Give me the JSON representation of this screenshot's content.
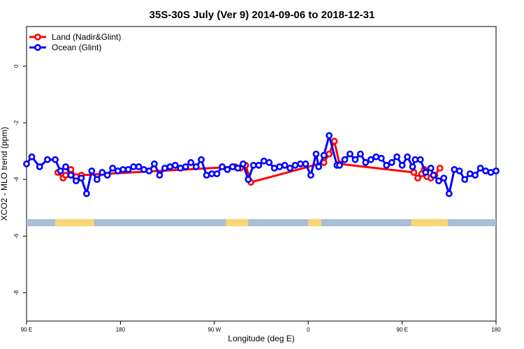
{
  "chart_data": {
    "type": "line",
    "title": "35S-30S July (Ver 9)   2014-09-06 to 2018-12-31",
    "xlabel": "Longitude (deg E)",
    "ylabel": "XCO2 - MLO trend (ppm)",
    "xlim": [
      90,
      450
    ],
    "ylim": [
      -9.0,
      1.4
    ],
    "x_ticks": [
      90,
      162,
      234,
      306,
      378,
      450
    ],
    "x_tick_labels": [
      "90 E",
      "180",
      "90 W",
      "0",
      "90 E",
      "180"
    ],
    "y_ticks": [
      0,
      -2,
      -4,
      -6,
      -8
    ],
    "y_tick_labels": [
      "0",
      "-2",
      "-4",
      "-6",
      "-8"
    ],
    "legend_position": "top-left",
    "colors": {
      "land": "#ff0000",
      "ocean": "#0000ff",
      "sea_strip": "#a9bed7",
      "land_strip": "#f9d774"
    },
    "land_strip": {
      "y_range": [
        -5.65,
        -5.4
      ],
      "land_segments": [
        [
          112,
          142
        ],
        [
          243,
          260
        ],
        [
          306,
          316
        ],
        [
          385,
          413
        ]
      ]
    },
    "series": [
      {
        "name": "Land (Nadir&Glint)",
        "color": "#ff0000",
        "x": [
          114,
          118,
          120,
          124,
          128,
          132,
          250,
          254,
          258,
          262,
          318,
          322,
          326,
          330,
          387,
          390,
          393,
          395,
          397,
          400,
          403,
          407
        ],
        "values": [
          -3.75,
          -3.95,
          -3.85,
          -3.65,
          -3.9,
          -3.85,
          -3.55,
          -3.6,
          -3.5,
          -4.1,
          -3.4,
          -3.1,
          -2.65,
          -3.45,
          -3.75,
          -3.95,
          -3.8,
          -3.65,
          -3.9,
          -3.95,
          -3.85,
          -3.6
        ]
      },
      {
        "name": "Ocean (Glint)",
        "color": "#0000ff",
        "x": [
          90,
          94,
          100,
          106,
          112,
          116,
          120,
          124,
          128,
          132,
          136,
          140,
          144,
          148,
          152,
          156,
          160,
          164,
          168,
          172,
          176,
          180,
          184,
          188,
          192,
          196,
          200,
          204,
          208,
          212,
          216,
          220,
          224,
          228,
          232,
          236,
          240,
          244,
          248,
          252,
          256,
          260,
          264,
          268,
          272,
          276,
          280,
          284,
          288,
          292,
          296,
          300,
          304,
          308,
          312,
          314,
          318,
          322,
          328,
          330,
          334,
          338,
          342,
          346,
          350,
          354,
          358,
          362,
          366,
          370,
          374,
          378,
          382,
          386,
          388,
          392,
          396,
          400,
          402,
          406,
          410,
          414,
          418,
          422,
          426,
          430,
          434,
          438,
          442,
          446,
          450
        ],
        "values": [
          -3.45,
          -3.2,
          -3.55,
          -3.3,
          -3.3,
          -3.7,
          -3.55,
          -3.85,
          -4.05,
          -3.95,
          -4.5,
          -3.7,
          -4.0,
          -3.75,
          -3.85,
          -3.6,
          -3.7,
          -3.65,
          -3.65,
          -3.55,
          -3.55,
          -3.65,
          -3.7,
          -3.45,
          -3.85,
          -3.6,
          -3.55,
          -3.5,
          -3.6,
          -3.55,
          -3.4,
          -3.55,
          -3.3,
          -3.85,
          -3.8,
          -3.8,
          -3.55,
          -3.65,
          -3.55,
          -3.6,
          -3.45,
          -4.0,
          -3.5,
          -3.5,
          -3.35,
          -3.4,
          -3.6,
          -3.55,
          -3.5,
          -3.6,
          -3.5,
          -3.45,
          -3.45,
          -3.85,
          -3.1,
          -3.55,
          -3.15,
          -2.45,
          -3.5,
          -3.5,
          -3.3,
          -3.1,
          -3.3,
          -3.1,
          -3.4,
          -3.3,
          -3.2,
          -3.25,
          -3.5,
          -3.4,
          -3.2,
          -3.5,
          -3.2,
          -3.55,
          -3.3,
          -3.3,
          -3.75,
          -3.6,
          -3.85,
          -4.05,
          -3.95,
          -4.5,
          -3.65,
          -3.7,
          -4.0,
          -3.8,
          -3.85,
          -3.6,
          -3.7,
          -3.75,
          -3.7
        ]
      }
    ]
  }
}
